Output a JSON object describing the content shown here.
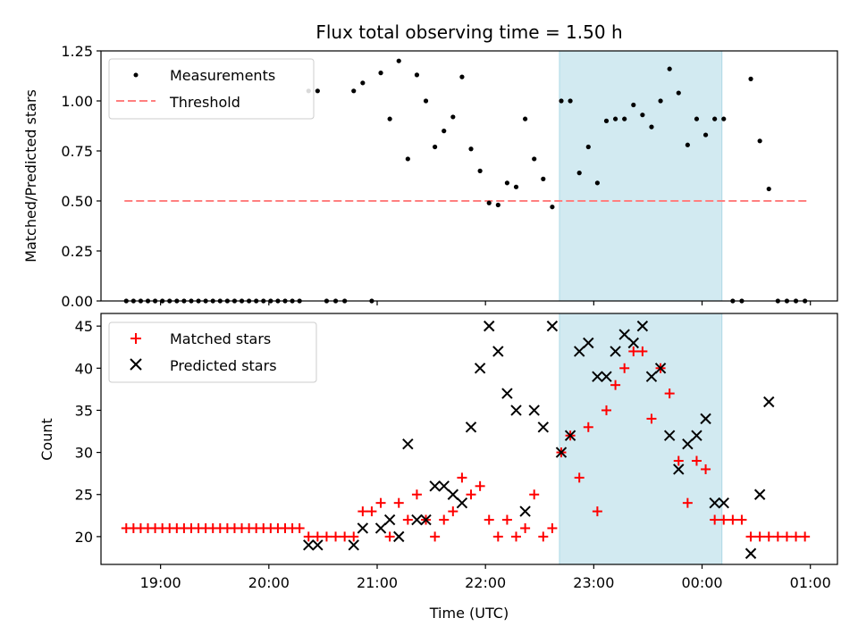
{
  "title": "Flux total observing time = 1.50 h",
  "colors": {
    "measurement": "#000000",
    "threshold": "#ff7f7f",
    "matched": "#ff0000",
    "predicted": "#000000",
    "highlight": "#add8e6"
  },
  "top_panel": {
    "ylabel": "Matched/Predicted stars",
    "yticks": [
      "0.00",
      "0.25",
      "0.50",
      "0.75",
      "1.00",
      "1.25"
    ],
    "legend": {
      "measurements": "Measurements",
      "threshold": "Threshold"
    }
  },
  "bottom_panel": {
    "ylabel": "Count",
    "yticks": [
      "20",
      "25",
      "30",
      "35",
      "40",
      "45"
    ],
    "legend": {
      "matched": "Matched stars",
      "predicted": "Predicted stars"
    }
  },
  "xaxis": {
    "label": "Time (UTC)",
    "ticks": [
      "19:00",
      "20:00",
      "21:00",
      "22:00",
      "23:00",
      "00:00",
      "01:00"
    ]
  },
  "chart_data": [
    {
      "type": "scatter",
      "title": "Flux total observing time = 1.50 h",
      "xlabel": "",
      "ylabel": "Matched/Predicted stars",
      "xlim": [
        "18:27",
        "01:15"
      ],
      "ylim": [
        0,
        1.25
      ],
      "legend_position": "top-left",
      "highlight_span": [
        "22:41",
        "00:11"
      ],
      "threshold": {
        "name": "Threshold",
        "value": 0.5,
        "x_range": [
          "18:40",
          "00:58"
        ]
      },
      "series": [
        {
          "name": "Measurements",
          "points": [
            [
              "18:41",
              0
            ],
            [
              "18:45",
              0
            ],
            [
              "18:49",
              0
            ],
            [
              "18:53",
              0
            ],
            [
              "18:57",
              0
            ],
            [
              "19:01",
              0
            ],
            [
              "19:05",
              0
            ],
            [
              "19:09",
              0
            ],
            [
              "19:13",
              0
            ],
            [
              "19:17",
              0
            ],
            [
              "19:21",
              0
            ],
            [
              "19:25",
              0
            ],
            [
              "19:29",
              0
            ],
            [
              "19:33",
              0
            ],
            [
              "19:37",
              0
            ],
            [
              "19:41",
              0
            ],
            [
              "19:45",
              0
            ],
            [
              "19:49",
              0
            ],
            [
              "19:53",
              0
            ],
            [
              "19:57",
              0
            ],
            [
              "20:01",
              0
            ],
            [
              "20:05",
              0
            ],
            [
              "20:09",
              0
            ],
            [
              "20:13",
              0
            ],
            [
              "20:17",
              0
            ],
            [
              "20:22",
              1.05
            ],
            [
              "20:27",
              1.05
            ],
            [
              "20:32",
              0
            ],
            [
              "20:37",
              0
            ],
            [
              "20:42",
              0
            ],
            [
              "20:47",
              1.05
            ],
            [
              "20:52",
              1.09
            ],
            [
              "20:57",
              0
            ],
            [
              "21:02",
              1.14
            ],
            [
              "21:07",
              0.91
            ],
            [
              "21:12",
              1.2
            ],
            [
              "21:17",
              0.71
            ],
            [
              "21:22",
              1.13
            ],
            [
              "21:27",
              1.0
            ],
            [
              "21:32",
              0.77
            ],
            [
              "21:37",
              0.85
            ],
            [
              "21:42",
              0.92
            ],
            [
              "21:47",
              1.12
            ],
            [
              "21:52",
              0.76
            ],
            [
              "21:57",
              0.65
            ],
            [
              "22:02",
              0.49
            ],
            [
              "22:07",
              0.48
            ],
            [
              "22:12",
              0.59
            ],
            [
              "22:17",
              0.57
            ],
            [
              "22:22",
              0.91
            ],
            [
              "22:27",
              0.71
            ],
            [
              "22:32",
              0.61
            ],
            [
              "22:37",
              0.47
            ],
            [
              "22:42",
              1.0
            ],
            [
              "22:47",
              1.0
            ],
            [
              "22:52",
              0.64
            ],
            [
              "22:57",
              0.77
            ],
            [
              "23:02",
              0.59
            ],
            [
              "23:07",
              0.9
            ],
            [
              "23:12",
              0.91
            ],
            [
              "23:17",
              0.91
            ],
            [
              "23:22",
              0.98
            ],
            [
              "23:27",
              0.93
            ],
            [
              "23:32",
              0.87
            ],
            [
              "23:37",
              1.0
            ],
            [
              "23:42",
              1.16
            ],
            [
              "23:47",
              1.04
            ],
            [
              "23:52",
              0.78
            ],
            [
              "23:57",
              0.91
            ],
            [
              "00:02",
              0.83
            ],
            [
              "00:07",
              0.91
            ],
            [
              "00:12",
              0.91
            ],
            [
              "00:17",
              0
            ],
            [
              "00:22",
              0
            ],
            [
              "00:27",
              1.11
            ],
            [
              "00:32",
              0.8
            ],
            [
              "00:37",
              0.56
            ],
            [
              "00:42",
              0
            ],
            [
              "00:47",
              0
            ],
            [
              "00:52",
              0
            ],
            [
              "00:57",
              0
            ]
          ]
        }
      ]
    },
    {
      "type": "scatter",
      "title": "",
      "xlabel": "Time (UTC)",
      "ylabel": "Count",
      "xlim": [
        "18:27",
        "01:15"
      ],
      "ylim": [
        16.7,
        46.5
      ],
      "legend_position": "top-left",
      "highlight_span": [
        "22:41",
        "00:11"
      ],
      "series": [
        {
          "name": "Matched stars",
          "points": [
            [
              "18:41",
              21
            ],
            [
              "18:45",
              21
            ],
            [
              "18:49",
              21
            ],
            [
              "18:53",
              21
            ],
            [
              "18:57",
              21
            ],
            [
              "19:01",
              21
            ],
            [
              "19:05",
              21
            ],
            [
              "19:09",
              21
            ],
            [
              "19:13",
              21
            ],
            [
              "19:17",
              21
            ],
            [
              "19:21",
              21
            ],
            [
              "19:25",
              21
            ],
            [
              "19:29",
              21
            ],
            [
              "19:33",
              21
            ],
            [
              "19:37",
              21
            ],
            [
              "19:41",
              21
            ],
            [
              "19:45",
              21
            ],
            [
              "19:49",
              21
            ],
            [
              "19:53",
              21
            ],
            [
              "19:57",
              21
            ],
            [
              "20:01",
              21
            ],
            [
              "20:05",
              21
            ],
            [
              "20:09",
              21
            ],
            [
              "20:13",
              21
            ],
            [
              "20:17",
              21
            ],
            [
              "20:22",
              20
            ],
            [
              "20:27",
              20
            ],
            [
              "20:32",
              20
            ],
            [
              "20:37",
              20
            ],
            [
              "20:42",
              20
            ],
            [
              "20:47",
              20
            ],
            [
              "20:52",
              23
            ],
            [
              "20:57",
              23
            ],
            [
              "21:02",
              24
            ],
            [
              "21:07",
              20
            ],
            [
              "21:12",
              24
            ],
            [
              "21:17",
              22
            ],
            [
              "21:22",
              25
            ],
            [
              "21:27",
              22
            ],
            [
              "21:32",
              20
            ],
            [
              "21:37",
              22
            ],
            [
              "21:42",
              23
            ],
            [
              "21:47",
              27
            ],
            [
              "21:52",
              25
            ],
            [
              "21:57",
              26
            ],
            [
              "22:02",
              22
            ],
            [
              "22:07",
              20
            ],
            [
              "22:12",
              22
            ],
            [
              "22:17",
              20
            ],
            [
              "22:22",
              21
            ],
            [
              "22:27",
              25
            ],
            [
              "22:32",
              20
            ],
            [
              "22:37",
              21
            ],
            [
              "22:42",
              30
            ],
            [
              "22:47",
              32
            ],
            [
              "22:52",
              27
            ],
            [
              "22:57",
              33
            ],
            [
              "23:02",
              23
            ],
            [
              "23:07",
              35
            ],
            [
              "23:12",
              38
            ],
            [
              "23:17",
              40
            ],
            [
              "23:22",
              42
            ],
            [
              "23:27",
              42
            ],
            [
              "23:32",
              34
            ],
            [
              "23:37",
              40
            ],
            [
              "23:42",
              37
            ],
            [
              "23:47",
              29
            ],
            [
              "23:52",
              24
            ],
            [
              "23:57",
              29
            ],
            [
              "00:02",
              28
            ],
            [
              "00:07",
              22
            ],
            [
              "00:12",
              22
            ],
            [
              "00:17",
              22
            ],
            [
              "00:22",
              22
            ],
            [
              "00:27",
              20
            ],
            [
              "00:32",
              20
            ],
            [
              "00:37",
              20
            ],
            [
              "00:42",
              20
            ],
            [
              "00:47",
              20
            ],
            [
              "00:52",
              20
            ],
            [
              "00:57",
              20
            ]
          ]
        },
        {
          "name": "Predicted stars",
          "points": [
            [
              "20:22",
              19
            ],
            [
              "20:27",
              19
            ],
            [
              "20:47",
              19
            ],
            [
              "20:52",
              21
            ],
            [
              "21:02",
              21
            ],
            [
              "21:07",
              22
            ],
            [
              "21:12",
              20
            ],
            [
              "21:17",
              31
            ],
            [
              "21:22",
              22
            ],
            [
              "21:27",
              22
            ],
            [
              "21:32",
              26
            ],
            [
              "21:37",
              26
            ],
            [
              "21:42",
              25
            ],
            [
              "21:47",
              24
            ],
            [
              "21:52",
              33
            ],
            [
              "21:57",
              40
            ],
            [
              "22:02",
              45
            ],
            [
              "22:07",
              42
            ],
            [
              "22:12",
              37
            ],
            [
              "22:17",
              35
            ],
            [
              "22:22",
              23
            ],
            [
              "22:27",
              35
            ],
            [
              "22:32",
              33
            ],
            [
              "22:37",
              45
            ],
            [
              "22:42",
              30
            ],
            [
              "22:47",
              32
            ],
            [
              "22:52",
              42
            ],
            [
              "22:57",
              43
            ],
            [
              "23:02",
              39
            ],
            [
              "23:07",
              39
            ],
            [
              "23:12",
              42
            ],
            [
              "23:17",
              44
            ],
            [
              "23:22",
              43
            ],
            [
              "23:27",
              45
            ],
            [
              "23:32",
              39
            ],
            [
              "23:37",
              40
            ],
            [
              "23:42",
              32
            ],
            [
              "23:47",
              28
            ],
            [
              "23:52",
              31
            ],
            [
              "23:57",
              32
            ],
            [
              "00:02",
              34
            ],
            [
              "00:07",
              24
            ],
            [
              "00:12",
              24
            ],
            [
              "00:27",
              18
            ],
            [
              "00:32",
              25
            ],
            [
              "00:37",
              36
            ]
          ]
        }
      ]
    }
  ]
}
